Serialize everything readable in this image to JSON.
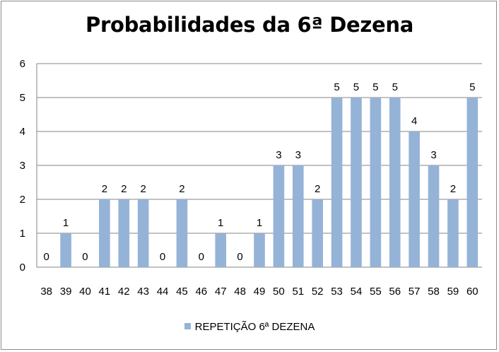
{
  "chart_data": {
    "type": "bar",
    "title": "Probabilidades da 6ª Dezena",
    "categories": [
      "38",
      "39",
      "40",
      "41",
      "42",
      "43",
      "44",
      "45",
      "46",
      "47",
      "48",
      "49",
      "50",
      "51",
      "52",
      "53",
      "54",
      "55",
      "56",
      "57",
      "58",
      "59",
      "60"
    ],
    "series": [
      {
        "name": "REPETIÇÃO 6ª DEZENA",
        "values": [
          0,
          1,
          0,
          2,
          2,
          2,
          0,
          2,
          0,
          1,
          0,
          1,
          3,
          3,
          2,
          5,
          5,
          5,
          5,
          4,
          3,
          2,
          5
        ],
        "color": "#95b3d7"
      }
    ],
    "ylim": [
      0,
      6
    ],
    "yticks": [
      0,
      1,
      2,
      3,
      4,
      5,
      6
    ],
    "grid": true,
    "data_labels": true,
    "legend_position": "bottom"
  }
}
